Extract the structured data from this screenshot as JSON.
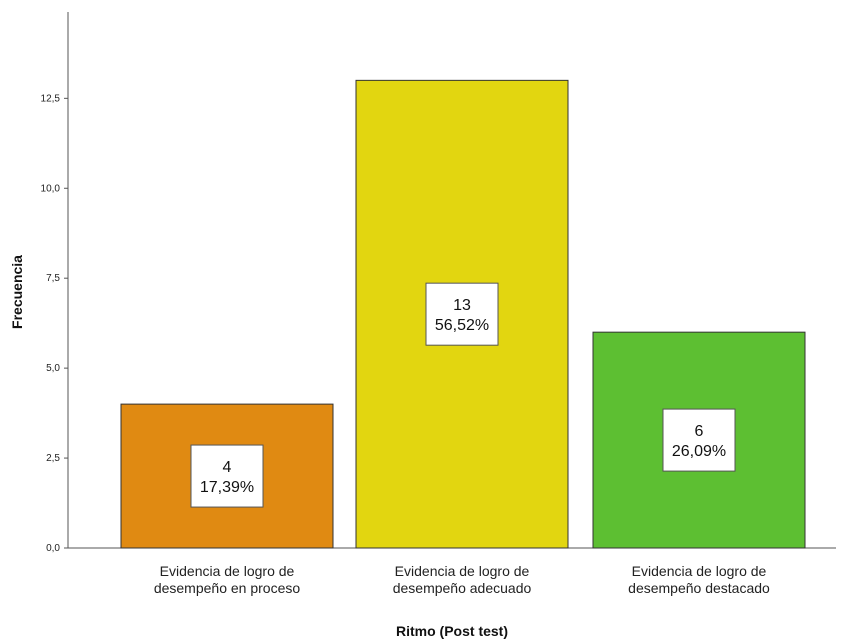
{
  "chart_data": {
    "type": "bar",
    "title": "",
    "xlabel": "Ritmo (Post test)",
    "ylabel": "Frecuencia",
    "categories": [
      [
        "Evidencia de logro de",
        "desempeño en proceso"
      ],
      [
        "Evidencia de logro de",
        "desempeño adecuado"
      ],
      [
        "Evidencia de logro de",
        "desempeño destacado"
      ]
    ],
    "values": [
      4,
      13,
      6
    ],
    "percent_labels": [
      "17,39%",
      "56,52%",
      "26,09%"
    ],
    "count_labels": [
      "4",
      "13",
      "6"
    ],
    "colors": [
      "#E08A12",
      "#E2D610",
      "#5DBF32"
    ],
    "yticks": [
      "0,0",
      "2,5",
      "5,0",
      "7,5",
      "10,0",
      "12,5"
    ],
    "ytick_values": [
      0,
      2.5,
      5,
      7.5,
      10,
      12.5
    ],
    "ylim": [
      0,
      14.9
    ],
    "grid": false,
    "legend": "none"
  }
}
